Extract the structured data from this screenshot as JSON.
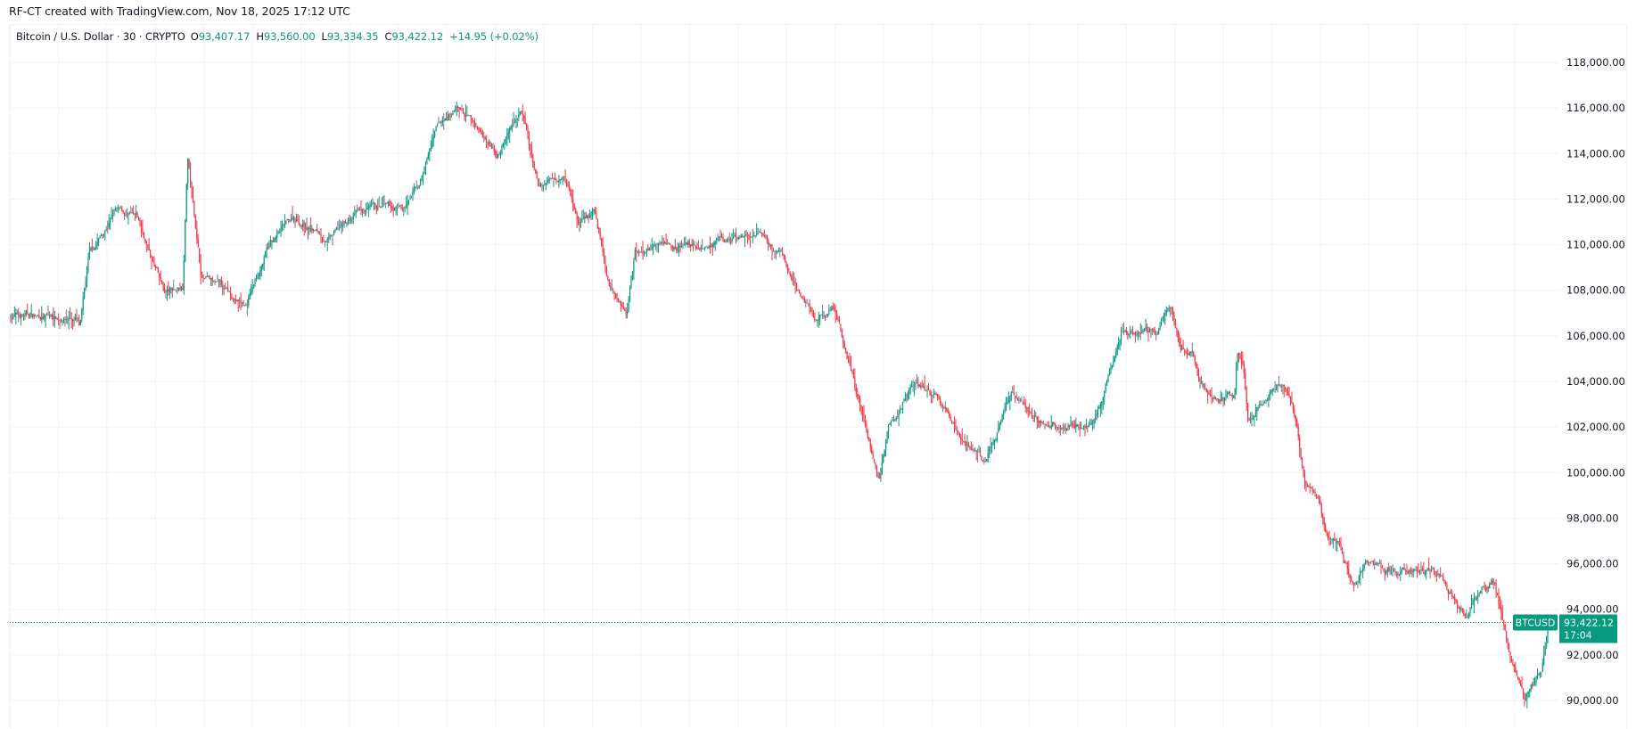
{
  "watermark": "RF-CT created with TradingView.com, Nov 18, 2025 17:12 UTC",
  "legend": {
    "title": "Bitcoin / U.S. Dollar · 30 · CRYPTO",
    "open_label": "O",
    "open": "93,407.17",
    "high_label": "H",
    "high": "93,560.00",
    "low_label": "L",
    "low": "93,334.35",
    "close_label": "C",
    "close": "93,422.12",
    "change": "+14.95 (+0.02%)"
  },
  "price_tag": {
    "symbol": "BTCUSD",
    "price": "93,422.12",
    "countdown": "17:04"
  },
  "colors": {
    "up": "#089981",
    "down": "#f23645",
    "neutral": "#787b86",
    "grid": "#f0f3fa",
    "tag": "#089981"
  },
  "chart_data": {
    "type": "candlestick",
    "title": "Bitcoin / U.S. Dollar · 30 · CRYPTO",
    "interval": "30",
    "xlabel": "",
    "ylabel": "",
    "ylim": [
      89000,
      119000
    ],
    "y_ticks": [
      118000,
      116000,
      114000,
      112000,
      110000,
      108000,
      106000,
      104000,
      102000,
      100000,
      98000,
      96000,
      94000,
      92000,
      90000
    ],
    "y_tick_labels": [
      "118,000.00",
      "116,000.00",
      "114,000.00",
      "112,000.00",
      "110,000.00",
      "108,000.00",
      "106,000.00",
      "104,000.00",
      "102,000.00",
      "100,000.00",
      "98,000.00",
      "96,000.00",
      "94,000.00",
      "92,000.00",
      "90,000.00"
    ],
    "grid": true,
    "last_price": 93422.12,
    "approx_price_path": [
      [
        0.0,
        106900
      ],
      [
        0.042,
        106800
      ],
      [
        0.045,
        106300
      ],
      [
        0.051,
        109400
      ],
      [
        0.068,
        111500
      ],
      [
        0.083,
        111000
      ],
      [
        0.1,
        107800
      ],
      [
        0.112,
        108200
      ],
      [
        0.115,
        114000
      ],
      [
        0.124,
        108600
      ],
      [
        0.153,
        107300
      ],
      [
        0.167,
        109800
      ],
      [
        0.184,
        111200
      ],
      [
        0.207,
        110200
      ],
      [
        0.225,
        111400
      ],
      [
        0.256,
        111600
      ],
      [
        0.265,
        112500
      ],
      [
        0.277,
        115000
      ],
      [
        0.291,
        116000
      ],
      [
        0.317,
        114100
      ],
      [
        0.332,
        116000
      ],
      [
        0.343,
        112500
      ],
      [
        0.36,
        113300
      ],
      [
        0.369,
        111000
      ],
      [
        0.38,
        111400
      ],
      [
        0.389,
        108200
      ],
      [
        0.401,
        107100
      ],
      [
        0.406,
        109800
      ],
      [
        0.424,
        110000
      ],
      [
        0.456,
        110000
      ],
      [
        0.485,
        110400
      ],
      [
        0.502,
        109400
      ],
      [
        0.513,
        107800
      ],
      [
        0.525,
        106700
      ],
      [
        0.536,
        107300
      ],
      [
        0.548,
        104300
      ],
      [
        0.559,
        101200
      ],
      [
        0.565,
        99600
      ],
      [
        0.571,
        102200
      ],
      [
        0.588,
        104100
      ],
      [
        0.6,
        103500
      ],
      [
        0.617,
        101600
      ],
      [
        0.634,
        100400
      ],
      [
        0.651,
        103500
      ],
      [
        0.669,
        102200
      ],
      [
        0.692,
        102000
      ],
      [
        0.706,
        102400
      ],
      [
        0.72,
        105500
      ],
      [
        0.723,
        106300
      ],
      [
        0.746,
        106100
      ],
      [
        0.755,
        107500
      ],
      [
        0.761,
        105300
      ],
      [
        0.769,
        105300
      ],
      [
        0.773,
        104000
      ],
      [
        0.782,
        103300
      ],
      [
        0.796,
        103300
      ],
      [
        0.798,
        105100
      ],
      [
        0.802,
        104900
      ],
      [
        0.805,
        102400
      ],
      [
        0.825,
        104000
      ],
      [
        0.831,
        103600
      ],
      [
        0.836,
        102400
      ],
      [
        0.842,
        99600
      ],
      [
        0.851,
        98900
      ],
      [
        0.856,
        97300
      ],
      [
        0.865,
        96900
      ],
      [
        0.873,
        95100
      ],
      [
        0.882,
        96100
      ],
      [
        0.899,
        95700
      ],
      [
        0.916,
        95700
      ],
      [
        0.928,
        95700
      ],
      [
        0.939,
        94500
      ],
      [
        0.948,
        93800
      ],
      [
        0.956,
        95000
      ],
      [
        0.965,
        95300
      ],
      [
        0.971,
        93400
      ],
      [
        0.976,
        91800
      ],
      [
        0.985,
        89900
      ],
      [
        0.991,
        90800
      ],
      [
        0.996,
        91400
      ],
      [
        1.0,
        93422
      ]
    ]
  }
}
